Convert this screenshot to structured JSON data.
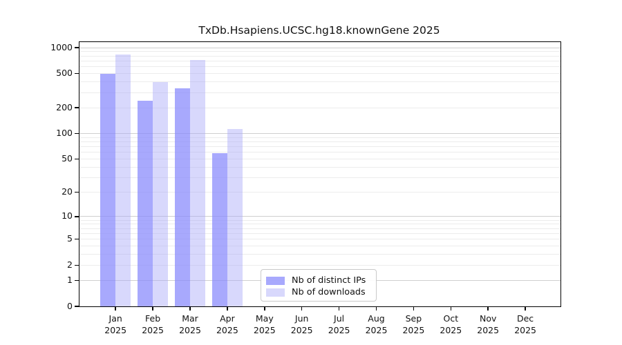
{
  "page": {
    "background_color": "#ffffff",
    "axis_color": "#000000",
    "text_color": "#111111"
  },
  "chart_data": {
    "type": "bar",
    "title": "TxDb.Hsapiens.UCSC.hg18.knownGene 2025",
    "y_scale": "log1p",
    "ylim": [
      0,
      1000
    ],
    "yticks": [
      0,
      1,
      2,
      5,
      10,
      20,
      50,
      100,
      200,
      500,
      1000
    ],
    "categories": [
      "Jan 2025",
      "Feb 2025",
      "Mar 2025",
      "Apr 2025",
      "May 2025",
      "Jun 2025",
      "Jul 2025",
      "Aug 2025",
      "Sep 2025",
      "Oct 2025",
      "Nov 2025",
      "Dec 2025"
    ],
    "series": [
      {
        "name": "Nb of distinct IPs",
        "color": "rgba(134,136,252,0.72)",
        "solid_color": "#a9aafc",
        "values": [
          500,
          240,
          335,
          59,
          0,
          0,
          0,
          0,
          0,
          0,
          0,
          0
        ]
      },
      {
        "name": "Nb of downloads",
        "color": "rgba(168,168,249,0.45)",
        "solid_color": "#dadafb",
        "values": [
          830,
          400,
          715,
          112,
          0,
          0,
          0,
          0,
          0,
          0,
          0,
          0
        ]
      }
    ],
    "grid": {
      "orientation": "horizontal",
      "major_at": [
        1,
        10,
        100,
        1000
      ],
      "major_color": "#cfcfcf",
      "minor_color": "#ececec"
    },
    "legend_position": "bottom-center-inside"
  }
}
